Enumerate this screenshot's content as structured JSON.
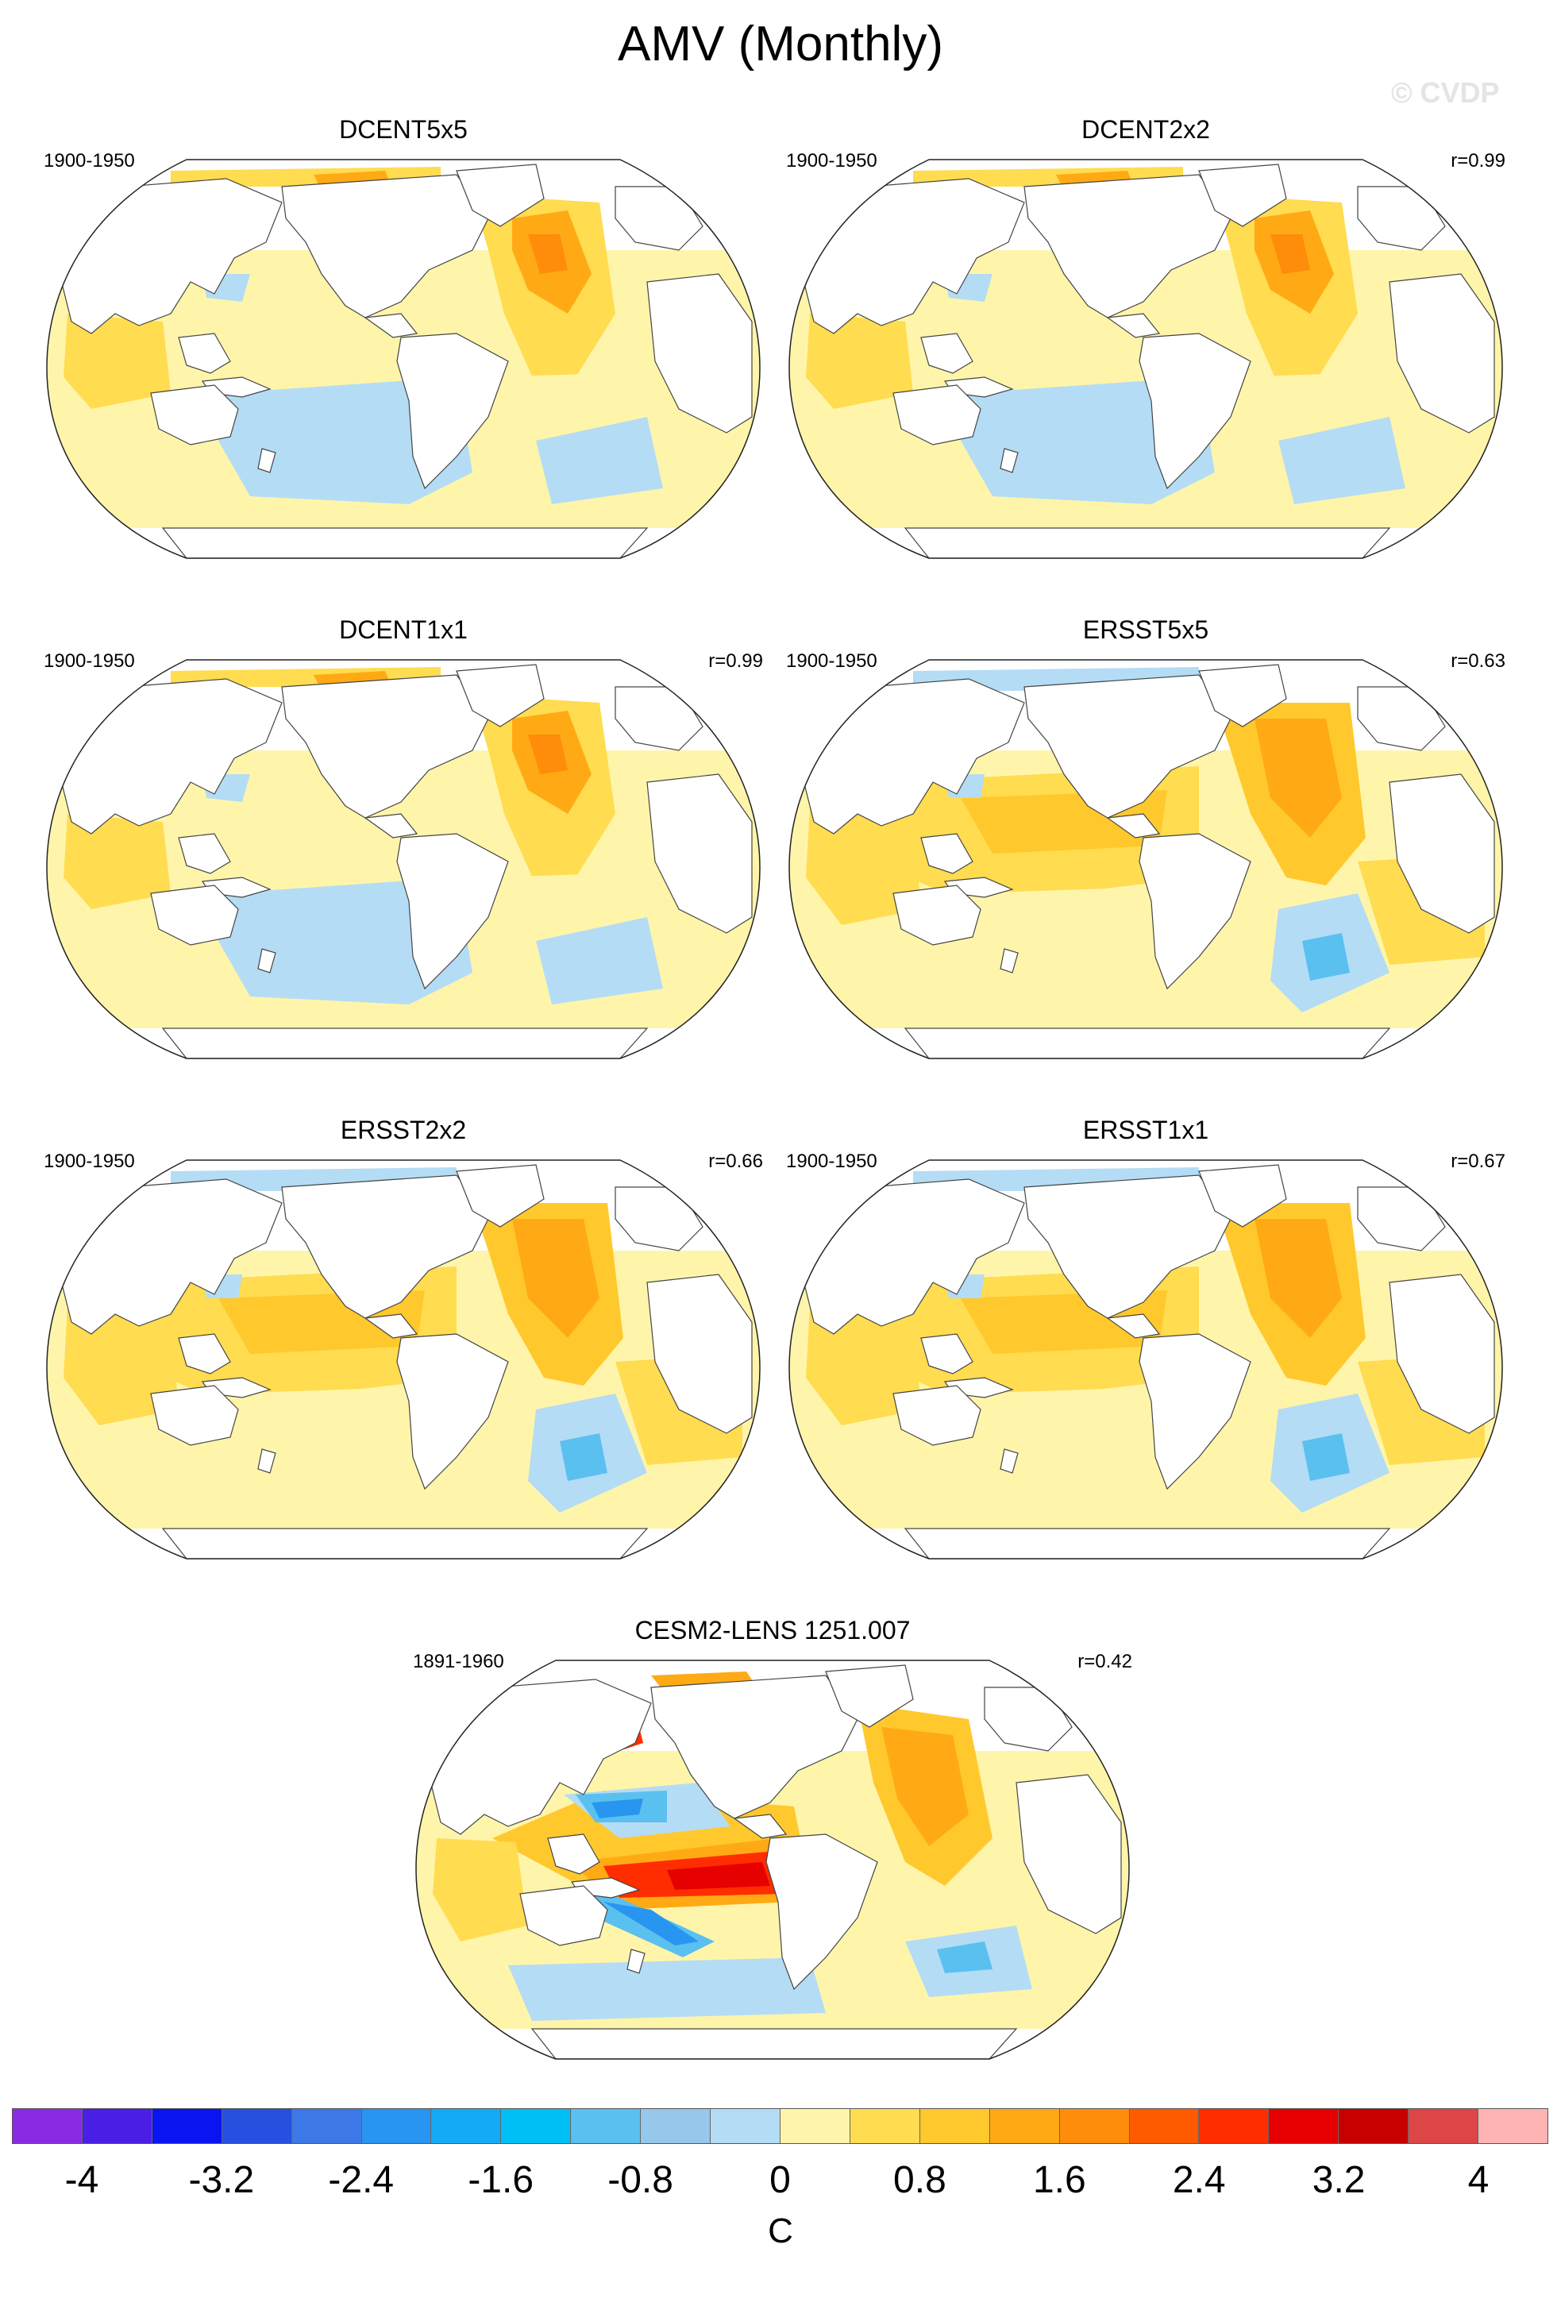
{
  "title": "AMV (Monthly)",
  "watermark": "© CVDP",
  "units": "C",
  "panels": [
    {
      "title": "DCENT5x5",
      "period": "1900-1950",
      "corr": ""
    },
    {
      "title": "DCENT2x2",
      "period": "1900-1950",
      "corr": "r=0.99"
    },
    {
      "title": "DCENT1x1",
      "period": "1900-1950",
      "corr": "r=0.99"
    },
    {
      "title": "ERSST5x5",
      "period": "1900-1950",
      "corr": "r=0.63"
    },
    {
      "title": "ERSST2x2",
      "period": "1900-1950",
      "corr": "r=0.66"
    },
    {
      "title": "ERSST1x1",
      "period": "1900-1950",
      "corr": "r=0.67"
    },
    {
      "title": "CESM2-LENS 1251.007",
      "period": "1891-1960",
      "corr": "r=0.42"
    }
  ],
  "colorbar": {
    "colors": [
      "#8a2be2",
      "#4b1ee6",
      "#0a14f0",
      "#2850e0",
      "#3c78e6",
      "#2896f0",
      "#14aaf5",
      "#00c0f5",
      "#5ac0f0",
      "#96c8eb",
      "#b4dcf5",
      "#fff5aa",
      "#ffdc50",
      "#ffc82d",
      "#ffaa14",
      "#ff8c0a",
      "#ff5a00",
      "#ff2d00",
      "#e60000",
      "#c80000",
      "#dc4646",
      "#ffb4b4"
    ],
    "tick_labels": [
      "-4",
      "-3.2",
      "-2.4",
      "-1.6",
      "-0.8",
      "0",
      "0.8",
      "1.6",
      "2.4",
      "3.2",
      "4"
    ]
  }
}
